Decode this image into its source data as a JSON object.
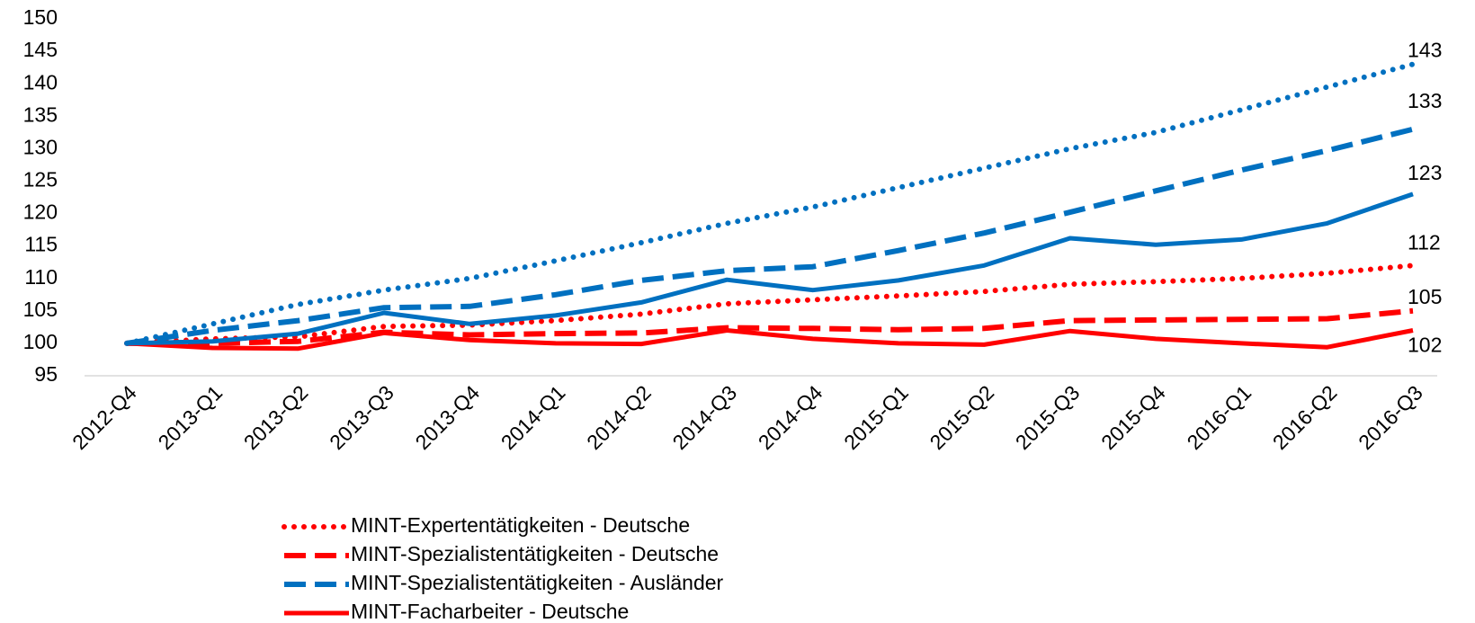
{
  "chart_data": {
    "type": "line",
    "categories": [
      "2012-Q4",
      "2013-Q1",
      "2013-Q2",
      "2013-Q3",
      "2013-Q4",
      "2014-Q1",
      "2014-Q2",
      "2014-Q3",
      "2014-Q4",
      "2015-Q1",
      "2015-Q2",
      "2015-Q3",
      "2015-Q4",
      "2016-Q1",
      "2016-Q2",
      "2016-Q3"
    ],
    "series": [
      {
        "name": "MINT-Expertentätigkeiten - Deutsche",
        "color": "#ff0000",
        "style": "dotted",
        "values": [
          100,
          100.7,
          101,
          102.6,
          102.8,
          103.5,
          104.5,
          106.1,
          106.7,
          107.3,
          108,
          109.1,
          109.5,
          110,
          110.8,
          112
        ]
      },
      {
        "name": "MINT-Spezialistentätigkeiten - Deutsche",
        "color": "#ff0000",
        "style": "dashed",
        "values": [
          100,
          100,
          100.3,
          101.7,
          101.3,
          101.5,
          101.6,
          102.4,
          102.3,
          102.1,
          102.3,
          103.5,
          103.6,
          103.7,
          103.8,
          105
        ]
      },
      {
        "name": "MINT-Spezialistentätigkeiten - Ausländer",
        "color": "#0070c0",
        "style": "dashed",
        "values": [
          100,
          102,
          103.5,
          105.5,
          105.7,
          107.5,
          109.7,
          111.2,
          111.8,
          114.3,
          117,
          120.2,
          123.5,
          126.7,
          129.7,
          133
        ]
      },
      {
        "name": "MINT-Facharbeiter - Deutsche",
        "color": "#ff0000",
        "style": "solid",
        "values": [
          100,
          99.3,
          99.2,
          101.6,
          100.5,
          100,
          99.9,
          102,
          100.7,
          100,
          99.8,
          101.9,
          100.7,
          100,
          99.4,
          102
        ]
      },
      {
        "color": "#0070c0",
        "style": "dotted",
        "values": [
          100,
          103,
          106,
          108.2,
          110,
          112.7,
          115.5,
          118.5,
          121,
          124,
          127,
          130,
          132.5,
          136,
          139.5,
          143
        ]
      },
      {
        "color": "#0070c0",
        "style": "solid",
        "values": [
          100,
          100.3,
          101.5,
          104.7,
          103,
          104.3,
          106.3,
          109.8,
          108.2,
          109.7,
          112,
          116.2,
          115.2,
          116,
          118.5,
          123
        ]
      }
    ],
    "ylim": [
      95,
      150
    ],
    "yticks": [
      95,
      100,
      105,
      110,
      115,
      120,
      125,
      130,
      135,
      140,
      145,
      150
    ],
    "grid": false
  }
}
